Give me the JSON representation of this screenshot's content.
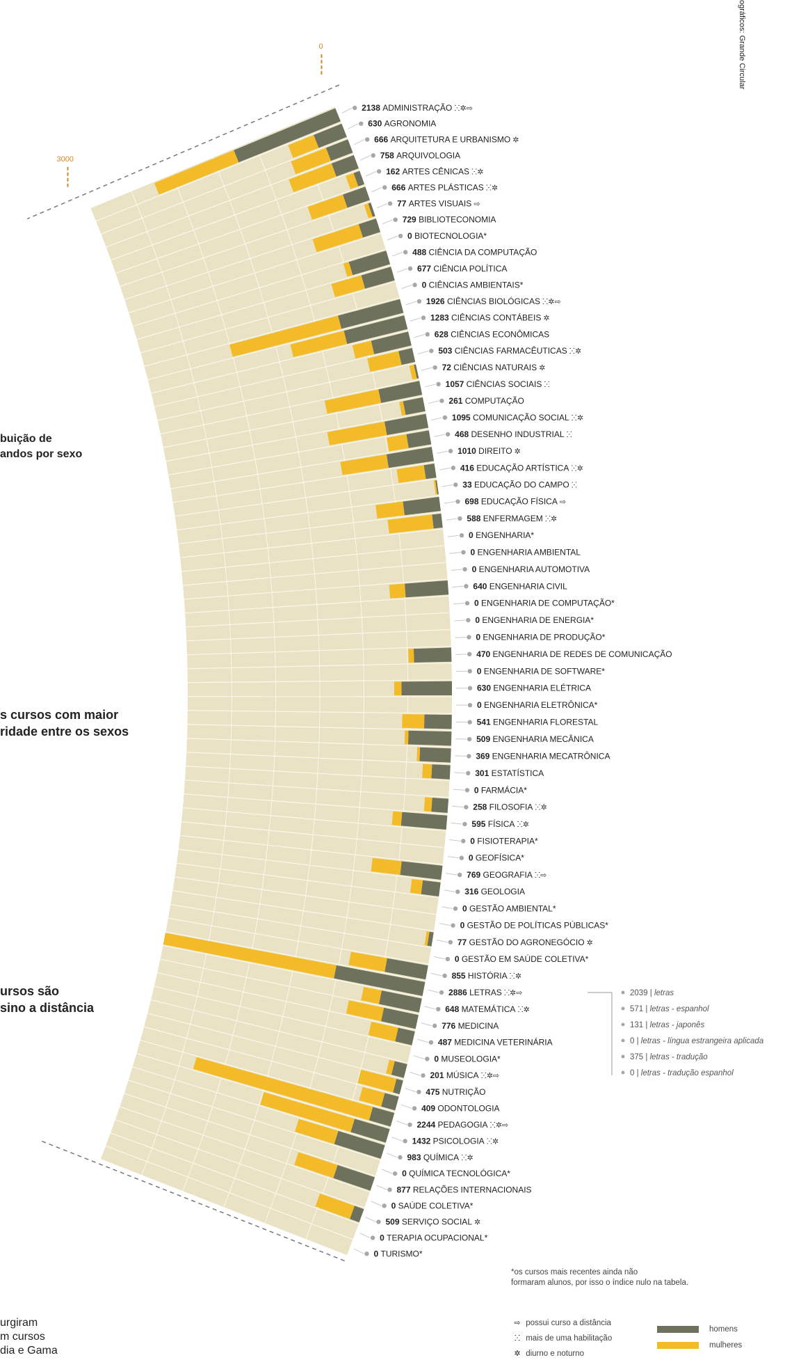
{
  "header": {
    "credit": "ográficos: Grande Circular"
  },
  "side_headings": [
    {
      "text": "buição de\nandos por sexo"
    },
    {
      "text": "s cursos com maior\nridade entre os sexos"
    },
    {
      "text": "ursos são\nsino a distância"
    }
  ],
  "bottom_note": "urgiram\nm cursos\ndia e Gama",
  "footnote": "*os cursos mais recentes ainda não\nformaram alunos, por isso o índice nulo na tabela.",
  "legend": {
    "flag_distance_icon": "distance-icon",
    "flag_distance_text": "possui curso a distância",
    "flag_multi_icon": "multi-habilitation-icon",
    "flag_multi_text": "mais de uma habilitação",
    "flag_daynight_icon": "day-night-icon",
    "flag_daynight_text": "diurno e noturno",
    "men_label": "homens",
    "women_label": "mulheres",
    "men_color": "#6e715b",
    "women_color": "#f2bb27"
  },
  "colors": {
    "track": "#e9e2c5",
    "track_line": "#fbf8ec",
    "axis": "#d08a2a",
    "dot": "#a7a7a7",
    "leader": "#c9c9c9"
  },
  "chart_data": {
    "type": "bar",
    "axis": {
      "ticks": [
        "0",
        "3000"
      ]
    },
    "series": [
      {
        "name": "homens",
        "color": "#6e715b"
      },
      {
        "name": "mulheres",
        "color": "#f2bb27"
      }
    ],
    "courses": [
      {
        "name": "Administração",
        "total": "2138",
        "flags": "ⵘ✲⇨",
        "men": 1200,
        "women": 938
      },
      {
        "name": "Agronomia",
        "total": "630",
        "flags": "",
        "men": 330,
        "women": 300
      },
      {
        "name": "Arquitetura e Urbanismo",
        "total": "666",
        "flags": "✲",
        "men": 256,
        "women": 410
      },
      {
        "name": "Arquivologia",
        "total": "758",
        "flags": "",
        "men": 260,
        "women": 498
      },
      {
        "name": "Artes Cênicas",
        "total": "162",
        "flags": "ⵘ✲",
        "men": 71,
        "women": 91
      },
      {
        "name": "Artes Plásticas",
        "total": "666",
        "flags": "ⵘ✲",
        "men": 260,
        "women": 406
      },
      {
        "name": "Artes Visuais",
        "total": "77",
        "flags": "⇨",
        "men": 30,
        "women": 47
      },
      {
        "name": "Biblioteconomia",
        "total": "729",
        "flags": "",
        "men": 200,
        "women": 529
      },
      {
        "name": "Biotecnologia*",
        "total": "0",
        "flags": "",
        "men": 0,
        "women": 0
      },
      {
        "name": "Ciência da Computação",
        "total": "488",
        "flags": "",
        "men": 426,
        "women": 62
      },
      {
        "name": "Ciência Política",
        "total": "677",
        "flags": "",
        "men": 337,
        "women": 340
      },
      {
        "name": "Ciências Ambientais*",
        "total": "0",
        "flags": "",
        "men": 0,
        "women": 0
      },
      {
        "name": "Ciências Biológicas",
        "total": "1926",
        "flags": "ⵘ✲⇨",
        "men": 700,
        "women": 1226
      },
      {
        "name": "Ciências Contábeis",
        "total": "1283",
        "flags": "✲",
        "men": 680,
        "women": 603
      },
      {
        "name": "Ciências Econômicas",
        "total": "628",
        "flags": "",
        "men": 418,
        "women": 210
      },
      {
        "name": "Ciências Farmacêuticas",
        "total": "503",
        "flags": "ⵘ✲",
        "men": 153,
        "women": 350
      },
      {
        "name": "Ciências Naturais",
        "total": "72",
        "flags": "✲",
        "men": 22,
        "women": 50
      },
      {
        "name": "Ciências Sociais",
        "total": "1057",
        "flags": "ⵘ",
        "men": 457,
        "women": 600
      },
      {
        "name": "Computação",
        "total": "261",
        "flags": "",
        "men": 219,
        "women": 42
      },
      {
        "name": "Comunicação Social",
        "total": "1095",
        "flags": "ⵘ✲",
        "men": 460,
        "women": 635
      },
      {
        "name": "Desenho Industrial",
        "total": "468",
        "flags": "ⵘ",
        "men": 250,
        "women": 218
      },
      {
        "name": "Direito",
        "total": "1010",
        "flags": "✲",
        "men": 500,
        "women": 510
      },
      {
        "name": "Educação Artística",
        "total": "416",
        "flags": "ⵘ✲",
        "men": 116,
        "women": 300
      },
      {
        "name": "Educação do Campo",
        "total": "33",
        "flags": "ⵘ",
        "men": 15,
        "women": 18
      },
      {
        "name": "Educação Física",
        "total": "698",
        "flags": "⇨",
        "men": 398,
        "women": 300
      },
      {
        "name": "Enfermagem",
        "total": "588",
        "flags": "ⵘ✲",
        "men": 100,
        "women": 488
      },
      {
        "name": "Engenharia*",
        "total": "0",
        "flags": "",
        "men": 0,
        "women": 0
      },
      {
        "name": "Engenharia Ambiental",
        "total": "0",
        "flags": "",
        "men": 0,
        "women": 0
      },
      {
        "name": "Engenharia Automotiva",
        "total": "0",
        "flags": "",
        "men": 0,
        "women": 0
      },
      {
        "name": "Engenharia Civil",
        "total": "640",
        "flags": "",
        "men": 470,
        "women": 170
      },
      {
        "name": "Engenharia de Computação*",
        "total": "0",
        "flags": "",
        "men": 0,
        "women": 0
      },
      {
        "name": "Engenharia de Energia*",
        "total": "0",
        "flags": "",
        "men": 0,
        "women": 0
      },
      {
        "name": "Engenharia de Produção*",
        "total": "0",
        "flags": "",
        "men": 0,
        "women": 0
      },
      {
        "name": "Engenharia de Redes de Comunicação",
        "total": "470",
        "flags": "",
        "men": 410,
        "women": 60
      },
      {
        "name": "Engenharia de Software*",
        "total": "0",
        "flags": "",
        "men": 0,
        "women": 0
      },
      {
        "name": "Engenharia Elétrica",
        "total": "630",
        "flags": "",
        "men": 550,
        "women": 80
      },
      {
        "name": "Engenharia Eletrônica*",
        "total": "0",
        "flags": "",
        "men": 0,
        "women": 0
      },
      {
        "name": "Engenharia Florestal",
        "total": "541",
        "flags": "",
        "men": 300,
        "women": 241
      },
      {
        "name": "Engenharia Mecânica",
        "total": "509",
        "flags": "",
        "men": 470,
        "women": 39
      },
      {
        "name": "Engenharia Mecatrônica",
        "total": "369",
        "flags": "",
        "men": 339,
        "women": 30
      },
      {
        "name": "Estatística",
        "total": "301",
        "flags": "",
        "men": 201,
        "women": 100
      },
      {
        "name": "Farmácia*",
        "total": "0",
        "flags": "",
        "men": 0,
        "women": 0
      },
      {
        "name": "Filosofia",
        "total": "258",
        "flags": "ⵘ✲",
        "men": 178,
        "women": 80
      },
      {
        "name": "Física",
        "total": "595",
        "flags": "ⵘ✲",
        "men": 495,
        "women": 100
      },
      {
        "name": "Fisioterapia*",
        "total": "0",
        "flags": "",
        "men": 0,
        "women": 0
      },
      {
        "name": "Geofísica*",
        "total": "0",
        "flags": "",
        "men": 0,
        "women": 0
      },
      {
        "name": "Geografia",
        "total": "769",
        "flags": "ⵘ⇨",
        "men": 449,
        "women": 320
      },
      {
        "name": "Geologia",
        "total": "316",
        "flags": "",
        "men": 196,
        "women": 120
      },
      {
        "name": "Gestão Ambiental*",
        "total": "0",
        "flags": "",
        "men": 0,
        "women": 0
      },
      {
        "name": "Gestão de Políticas Públicas*",
        "total": "0",
        "flags": "",
        "men": 0,
        "women": 0
      },
      {
        "name": "Gestão do Agronegócio",
        "total": "77",
        "flags": "✲",
        "men": 47,
        "women": 30
      },
      {
        "name": "Gestão em Saúde Coletiva*",
        "total": "0",
        "flags": "",
        "men": 0,
        "women": 0
      },
      {
        "name": "História",
        "total": "855",
        "flags": "ⵘ✲",
        "men": 455,
        "women": 400
      },
      {
        "name": "Letras",
        "total": "2886",
        "flags": "ⵘ✲⇨",
        "men": 986,
        "women": 1900
      },
      {
        "name": "Matemática",
        "total": "648",
        "flags": "ⵘ✲",
        "men": 448,
        "women": 200
      },
      {
        "name": "Medicina",
        "total": "776",
        "flags": "",
        "men": 386,
        "women": 390
      },
      {
        "name": "Medicina Veterinária",
        "total": "487",
        "flags": "",
        "men": 187,
        "women": 300
      },
      {
        "name": "Museologia*",
        "total": "0",
        "flags": "",
        "men": 0,
        "women": 0
      },
      {
        "name": "Música",
        "total": "201",
        "flags": "ⵘ✲⇨",
        "men": 141,
        "women": 60
      },
      {
        "name": "Nutrição",
        "total": "475",
        "flags": "",
        "men": 75,
        "women": 400
      },
      {
        "name": "Odontologia",
        "total": "409",
        "flags": "",
        "men": 159,
        "women": 250
      },
      {
        "name": "Pedagogia",
        "total": "2244",
        "flags": "ⵘ✲⇨",
        "men": 244,
        "women": 2000
      },
      {
        "name": "Psicologia",
        "total": "1432",
        "flags": "ⵘ✲",
        "men": 400,
        "women": 1032
      },
      {
        "name": "Química",
        "total": "983",
        "flags": "ⵘ✲",
        "men": 533,
        "women": 450
      },
      {
        "name": "Química Tecnológica*",
        "total": "0",
        "flags": "",
        "men": 0,
        "women": 0
      },
      {
        "name": "Relações Internacionais",
        "total": "877",
        "flags": "",
        "men": 427,
        "women": 450
      },
      {
        "name": "Saúde Coletiva*",
        "total": "0",
        "flags": "",
        "men": 0,
        "women": 0
      },
      {
        "name": "Serviço Social",
        "total": "509",
        "flags": "✲",
        "men": 109,
        "women": 400
      },
      {
        "name": "Terapia Ocupacional*",
        "total": "0",
        "flags": "",
        "men": 0,
        "women": 0
      },
      {
        "name": "Turismo*",
        "total": "0",
        "flags": "",
        "men": 0,
        "women": 0
      }
    ],
    "letras_breakdown": [
      {
        "value": "2039",
        "label": "letras"
      },
      {
        "value": "571",
        "label": "letras - espanhol"
      },
      {
        "value": "131",
        "label": "letras - japonês"
      },
      {
        "value": "0",
        "label": "letras - língua estrangeira aplicada"
      },
      {
        "value": "375",
        "label": "letras - tradução"
      },
      {
        "value": "0",
        "label": "letras - tradução espanhol"
      }
    ]
  }
}
